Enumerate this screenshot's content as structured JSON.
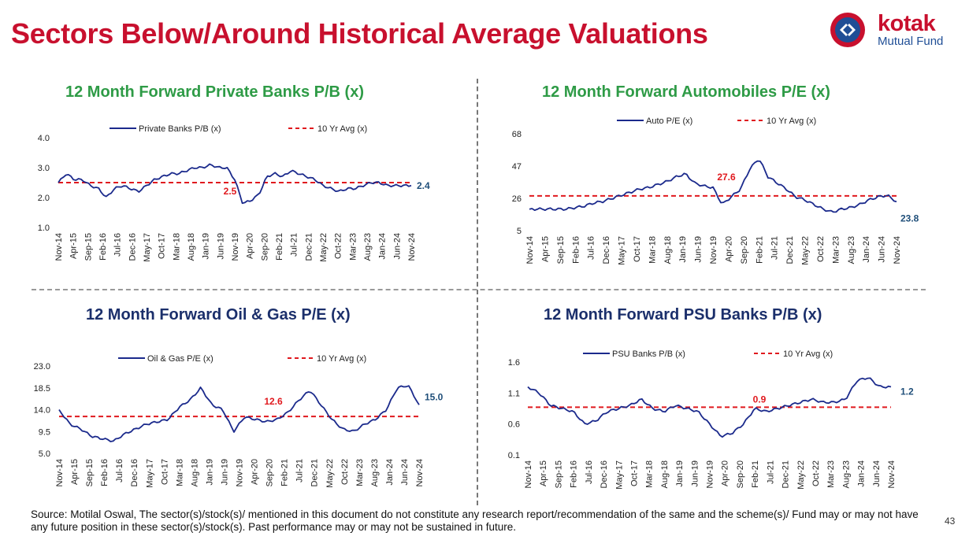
{
  "page": {
    "title": "Sectors Below/Around Historical Average Valuations",
    "source": "Source: Motilal Oswal, The sector(s)/stock(s)/ mentioned in this document do not constitute any research report/recommendation of the same and the scheme(s)/ Fund may or may not have any future position in these sector(s)/stock(s). Past performance may or may not be sustained in future.",
    "page_number": "43"
  },
  "logo": {
    "word": "kotak",
    "sub": "Mutual Fund"
  },
  "colors": {
    "title_red": "#c8102e",
    "series_navy": "#1b2a8c",
    "avg_red": "#e0191e",
    "title_green": "#2e9b46",
    "title_navy": "#1b2f6b"
  },
  "chart_data": [
    {
      "type": "line",
      "title": "12 Month Forward Private Banks P/B (x)",
      "legend": [
        "Private Banks P/B (x)",
        "10 Yr Avg (x)"
      ],
      "legend_position": "top",
      "ylim": [
        1.0,
        4.0
      ],
      "yticks": [
        "4.0",
        "3.0",
        "2.0",
        "1.0"
      ],
      "xticks": [
        "Nov-14",
        "Apr-15",
        "Sep-15",
        "Feb-16",
        "Jul-16",
        "Dec-16",
        "May-17",
        "Oct-17",
        "Mar-18",
        "Aug-18",
        "Jan-19",
        "Jun-19",
        "Nov-19",
        "Apr-20",
        "Sep-20",
        "Feb-21",
        "Jul-21",
        "Dec-21",
        "May-22",
        "Oct-22",
        "Mar-23",
        "Aug-23",
        "Jan-24",
        "Jun-24",
        "Nov-24"
      ],
      "series_values": [
        2.5,
        2.8,
        2.6,
        2.6,
        2.4,
        2.3,
        2.0,
        2.3,
        2.4,
        2.3,
        2.2,
        2.4,
        2.6,
        2.7,
        2.8,
        2.8,
        2.9,
        3.0,
        3.0,
        3.1,
        3.0,
        3.0,
        2.6,
        1.8,
        1.9,
        2.1,
        2.7,
        2.8,
        2.7,
        2.9,
        2.8,
        2.7,
        2.6,
        2.4,
        2.3,
        2.2,
        2.3,
        2.3,
        2.4,
        2.5,
        2.5,
        2.4,
        2.4,
        2.4,
        2.4
      ],
      "average": 2.5,
      "avg_label": "2.5",
      "last_label": "2.4"
    },
    {
      "type": "line",
      "title": "12 Month Forward Automobiles P/E (x)",
      "legend": [
        "Auto P/E (x)",
        "10 Yr Avg (x)"
      ],
      "legend_position": "top",
      "ylim": [
        5,
        68
      ],
      "yticks": [
        "68",
        "47",
        "26",
        "5"
      ],
      "xticks": [
        "Nov-14",
        "Apr-15",
        "Sep-15",
        "Feb-16",
        "Jul-16",
        "Dec-16",
        "May-17",
        "Oct-17",
        "Mar-18",
        "Aug-18",
        "Jan-19",
        "Jun-19",
        "Nov-19",
        "Apr-20",
        "Sep-20",
        "Feb-21",
        "Jul-21",
        "Dec-21",
        "May-22",
        "Oct-22",
        "Mar-23",
        "Aug-23",
        "Jan-24",
        "Jun-24",
        "Nov-24"
      ],
      "series_values": [
        19,
        19,
        19,
        19,
        19,
        20,
        21,
        23,
        24,
        26,
        28,
        30,
        32,
        33,
        35,
        37,
        40,
        42,
        36,
        34,
        33,
        22,
        27,
        32,
        45,
        52,
        40,
        36,
        32,
        27,
        25,
        22,
        19,
        17,
        19,
        20,
        22,
        25,
        27,
        28,
        23.8
      ],
      "average": 27.6,
      "avg_label": "27.6",
      "last_label": "23.8"
    },
    {
      "type": "line",
      "title": "12 Month Forward Oil & Gas P/E (x)",
      "legend": [
        "Oil & Gas P/E (x)",
        "10 Yr Avg (x)"
      ],
      "legend_position": "top",
      "ylim": [
        5.0,
        23.0
      ],
      "yticks": [
        "23.0",
        "18.5",
        "14.0",
        "9.5",
        "5.0"
      ],
      "xticks": [
        "Nov-14",
        "Apr-15",
        "Sep-15",
        "Feb-16",
        "Jul-16",
        "Dec-16",
        "May-17",
        "Oct-17",
        "Mar-18",
        "Aug-18",
        "Jan-19",
        "Jun-19",
        "Nov-19",
        "Apr-20",
        "Sep-20",
        "Feb-21",
        "Jul-21",
        "Dec-21",
        "May-22",
        "Oct-22",
        "Mar-23",
        "Aug-23",
        "Jan-24",
        "Jun-24",
        "Nov-24"
      ],
      "series_values": [
        14.0,
        11.0,
        10.0,
        8.5,
        8.0,
        7.5,
        9.0,
        10.0,
        11.0,
        11.5,
        12.0,
        14.5,
        16.0,
        18.5,
        15.0,
        14.0,
        9.5,
        12.5,
        12.0,
        11.5,
        12.0,
        13.5,
        16.0,
        18.0,
        15.0,
        12.0,
        10.0,
        9.5,
        11.0,
        12.0,
        14.0,
        18.5,
        19.0,
        15.0
      ],
      "average": 12.6,
      "avg_label": "12.6",
      "last_label": "15.0"
    },
    {
      "type": "line",
      "title": "12 Month Forward PSU Banks P/B (x)",
      "legend": [
        "PSU Banks P/B (x)",
        "10 Yr Avg (x)"
      ],
      "legend_position": "top",
      "ylim": [
        0.1,
        1.6
      ],
      "yticks": [
        "1.6",
        "1.1",
        "0.6",
        "0.1"
      ],
      "xticks": [
        "Nov-14",
        "Apr-15",
        "Sep-15",
        "Feb-16",
        "Jul-16",
        "Dec-16",
        "May-17",
        "Oct-17",
        "Mar-18",
        "Aug-18",
        "Jan-19",
        "Jun-19",
        "Nov-19",
        "Apr-20",
        "Sep-20",
        "Feb-21",
        "Jul-21",
        "Dec-21",
        "May-22",
        "Oct-22",
        "Mar-23",
        "Aug-23",
        "Jan-24",
        "Jun-24",
        "Nov-24"
      ],
      "series_values": [
        1.2,
        1.1,
        0.9,
        0.85,
        0.8,
        0.6,
        0.65,
        0.8,
        0.85,
        0.9,
        1.0,
        0.85,
        0.8,
        0.9,
        0.85,
        0.8,
        0.6,
        0.4,
        0.45,
        0.6,
        0.85,
        0.8,
        0.85,
        0.9,
        0.95,
        1.0,
        0.95,
        0.95,
        1.0,
        1.3,
        1.35,
        1.2,
        1.2
      ],
      "average": 0.87,
      "avg_label": "0.9",
      "last_label": "1.2"
    }
  ]
}
